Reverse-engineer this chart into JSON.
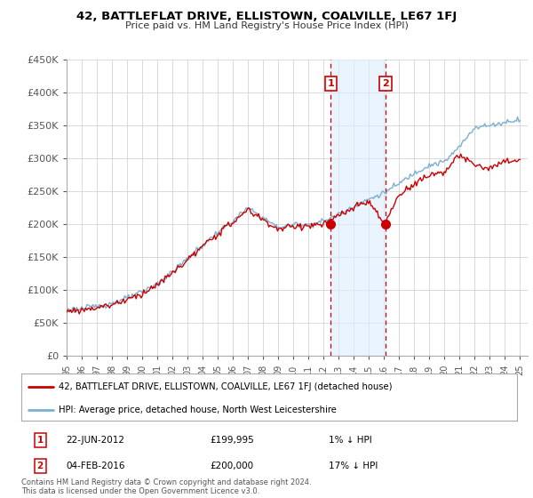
{
  "title": "42, BATTLEFLAT DRIVE, ELLISTOWN, COALVILLE, LE67 1FJ",
  "subtitle": "Price paid vs. HM Land Registry's House Price Index (HPI)",
  "ylim": [
    0,
    450000
  ],
  "yticks": [
    0,
    50000,
    100000,
    150000,
    200000,
    250000,
    300000,
    350000,
    400000,
    450000
  ],
  "ytick_labels": [
    "£0",
    "£50K",
    "£100K",
    "£150K",
    "£200K",
    "£250K",
    "£300K",
    "£350K",
    "£400K",
    "£450K"
  ],
  "xlim_start": 1995.0,
  "xlim_end": 2025.5,
  "transaction1_date": 2012.47,
  "transaction1_price": 199995,
  "transaction1_label": "1",
  "transaction2_date": 2016.09,
  "transaction2_price": 200000,
  "transaction2_label": "2",
  "shade_color": "#ddeeff",
  "shade_alpha": 0.6,
  "property_line_color": "#cc0000",
  "hpi_line_color": "#7ab0d4",
  "property_line_label": "42, BATTLEFLAT DRIVE, ELLISTOWN, COALVILLE, LE67 1FJ (detached house)",
  "hpi_line_label": "HPI: Average price, detached house, North West Leicestershire",
  "legend1_date": "22-JUN-2012",
  "legend1_price": "£199,995",
  "legend1_pct": "1% ↓ HPI",
  "legend2_date": "04-FEB-2016",
  "legend2_price": "£200,000",
  "legend2_pct": "17% ↓ HPI",
  "footer": "Contains HM Land Registry data © Crown copyright and database right 2024.\nThis data is licensed under the Open Government Licence v3.0.",
  "background_color": "#ffffff",
  "grid_color": "#cccccc",
  "hpi_key_years": [
    1995,
    1996,
    1997,
    1998,
    1999,
    2000,
    2001,
    2002,
    2003,
    2004,
    2005,
    2006,
    2007,
    2008,
    2009,
    2010,
    2011,
    2012,
    2013,
    2014,
    2015,
    2016,
    2017,
    2018,
    2019,
    2020,
    2021,
    2022,
    2023,
    2024,
    2025
  ],
  "hpi_key_prices": [
    70000,
    72000,
    76000,
    80000,
    88000,
    97000,
    110000,
    128000,
    148000,
    168000,
    188000,
    205000,
    225000,
    210000,
    195000,
    200000,
    200000,
    205000,
    215000,
    228000,
    238000,
    248000,
    262000,
    278000,
    290000,
    295000,
    318000,
    348000,
    350000,
    355000,
    360000
  ],
  "prop_key_years": [
    1995,
    1996,
    1997,
    1998,
    1999,
    2000,
    2001,
    2002,
    2003,
    2004,
    2005,
    2006,
    2007,
    2008,
    2009,
    2010,
    2011,
    2012,
    2013,
    2014,
    2015,
    2016,
    2017,
    2018,
    2019,
    2020,
    2021,
    2022,
    2023,
    2024,
    2025
  ],
  "prop_key_prices": [
    68000,
    70000,
    74000,
    78000,
    86000,
    95000,
    108000,
    126000,
    146000,
    166000,
    186000,
    203000,
    222000,
    207000,
    192000,
    197000,
    198000,
    200000,
    213000,
    225000,
    235000,
    200000,
    245000,
    262000,
    275000,
    280000,
    305000,
    290000,
    285000,
    295000,
    298000
  ]
}
